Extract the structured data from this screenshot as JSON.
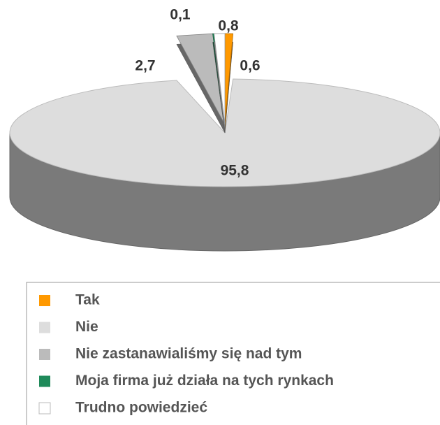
{
  "chart_data": {
    "type": "pie",
    "categories": [
      "Tak",
      "Nie",
      "Nie zastanawialiśmy się nad tym",
      "Moja firma już działa na tych rynkach",
      "Trudno powiedzieć"
    ],
    "values": [
      0.6,
      95.8,
      2.7,
      0.1,
      0.8
    ],
    "value_labels": [
      "0,6",
      "95,8",
      "2,7",
      "0,1",
      "0,8"
    ],
    "colors": [
      "#ff9900",
      "#dddddd",
      "#bbbbbb",
      "#1f8a5a",
      "#ffffff"
    ],
    "legend": "bottom"
  }
}
